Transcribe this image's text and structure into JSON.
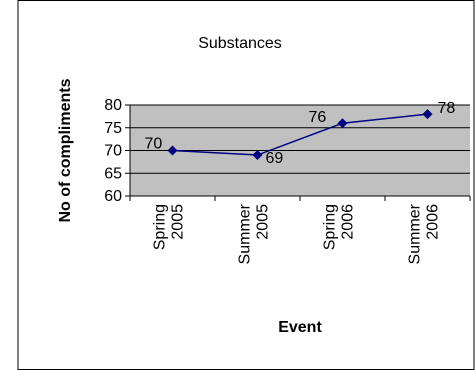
{
  "chart_data": {
    "type": "line",
    "title": "Substances",
    "xlabel": "Event",
    "ylabel": "No of compliments",
    "categories": [
      [
        "Spring",
        "2005"
      ],
      [
        "Summer",
        "2005"
      ],
      [
        "Spring",
        "2006"
      ],
      [
        "Summer",
        "2006"
      ]
    ],
    "series": [
      {
        "values": [
          70,
          69,
          76,
          78
        ],
        "color": "#000080",
        "marker": "diamond"
      }
    ],
    "data_labels": [
      "70",
      "69",
      "76",
      "78"
    ],
    "ylim": [
      60,
      80
    ],
    "yticks": [
      60,
      65,
      70,
      75,
      80
    ],
    "grid": true,
    "plot_background": "#c0c0c0",
    "legend": "none"
  }
}
